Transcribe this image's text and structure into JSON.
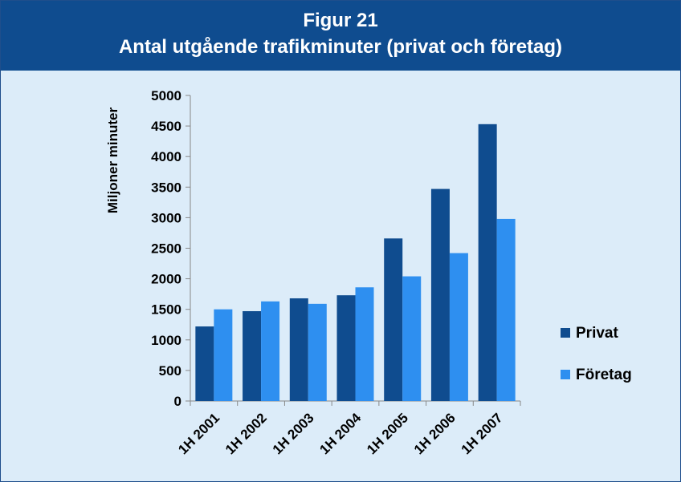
{
  "chart_data": {
    "type": "bar",
    "title": "Figur 21",
    "subtitle": "Antal utgående trafikminuter (privat och företag)",
    "xlabel": "",
    "ylabel": "Miljoner minuter",
    "ylim": [
      0,
      5000
    ],
    "yticks": [
      0,
      500,
      1000,
      1500,
      2000,
      2500,
      3000,
      3500,
      4000,
      4500,
      5000
    ],
    "categories": [
      "1H 2001",
      "1H 2002",
      "1H 2003",
      "1H 2004",
      "1H 2005",
      "1H 2006",
      "1H 2007"
    ],
    "series": [
      {
        "name": "Privat",
        "color": "#0f4c8f",
        "values": [
          1220,
          1470,
          1680,
          1730,
          2660,
          3470,
          4530
        ]
      },
      {
        "name": "Företag",
        "color": "#2e8ff0",
        "values": [
          1500,
          1630,
          1590,
          1860,
          2040,
          2420,
          2980
        ]
      }
    ],
    "grid": false,
    "legend_position": "right"
  }
}
